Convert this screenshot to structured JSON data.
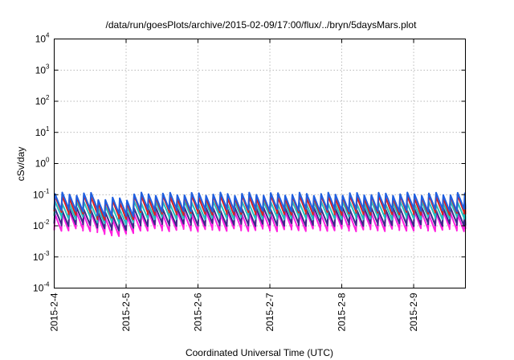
{
  "chart_data": {
    "type": "line",
    "title": "/data/run/goesPlots/archive/2015-02-09/17:00/flux/../bryn/5daysMars.plot",
    "xlabel": "Coordinated Universal Time (UTC)",
    "ylabel": "cSv/day",
    "yscale": "log",
    "ylim": [
      0.0001,
      10000
    ],
    "y_ticks": [
      {
        "base": "10",
        "exp": "-4"
      },
      {
        "base": "10",
        "exp": "-3"
      },
      {
        "base": "10",
        "exp": "-2"
      },
      {
        "base": "10",
        "exp": "-1"
      },
      {
        "base": "10",
        "exp": "0"
      },
      {
        "base": "10",
        "exp": "1"
      },
      {
        "base": "10",
        "exp": "2"
      },
      {
        "base": "10",
        "exp": "3"
      },
      {
        "base": "10",
        "exp": "4"
      }
    ],
    "x_ticks": [
      "2015-2-4",
      "2015-2-5",
      "2015-2-6",
      "2015-2-7",
      "2015-2-8",
      "2015-2-9"
    ],
    "xlim_days": [
      0,
      5.72
    ],
    "grid": true,
    "sawtooth_period_days": 0.1,
    "series": [
      {
        "color": "#1f5fe0",
        "peak": 0.105,
        "trough": 0.032
      },
      {
        "color": "#d92020",
        "peak": 0.085,
        "trough": 0.025
      },
      {
        "color": "#20c0c0",
        "peak": 0.055,
        "trough": 0.018
      },
      {
        "color": "#3a2a8a",
        "peak": 0.035,
        "trough": 0.011
      },
      {
        "color": "#ff20e0",
        "peak": 0.026,
        "trough": 0.0075
      }
    ],
    "quiet_interval_days": [
      0.6,
      1.05
    ],
    "quiet_factor": 0.7
  }
}
